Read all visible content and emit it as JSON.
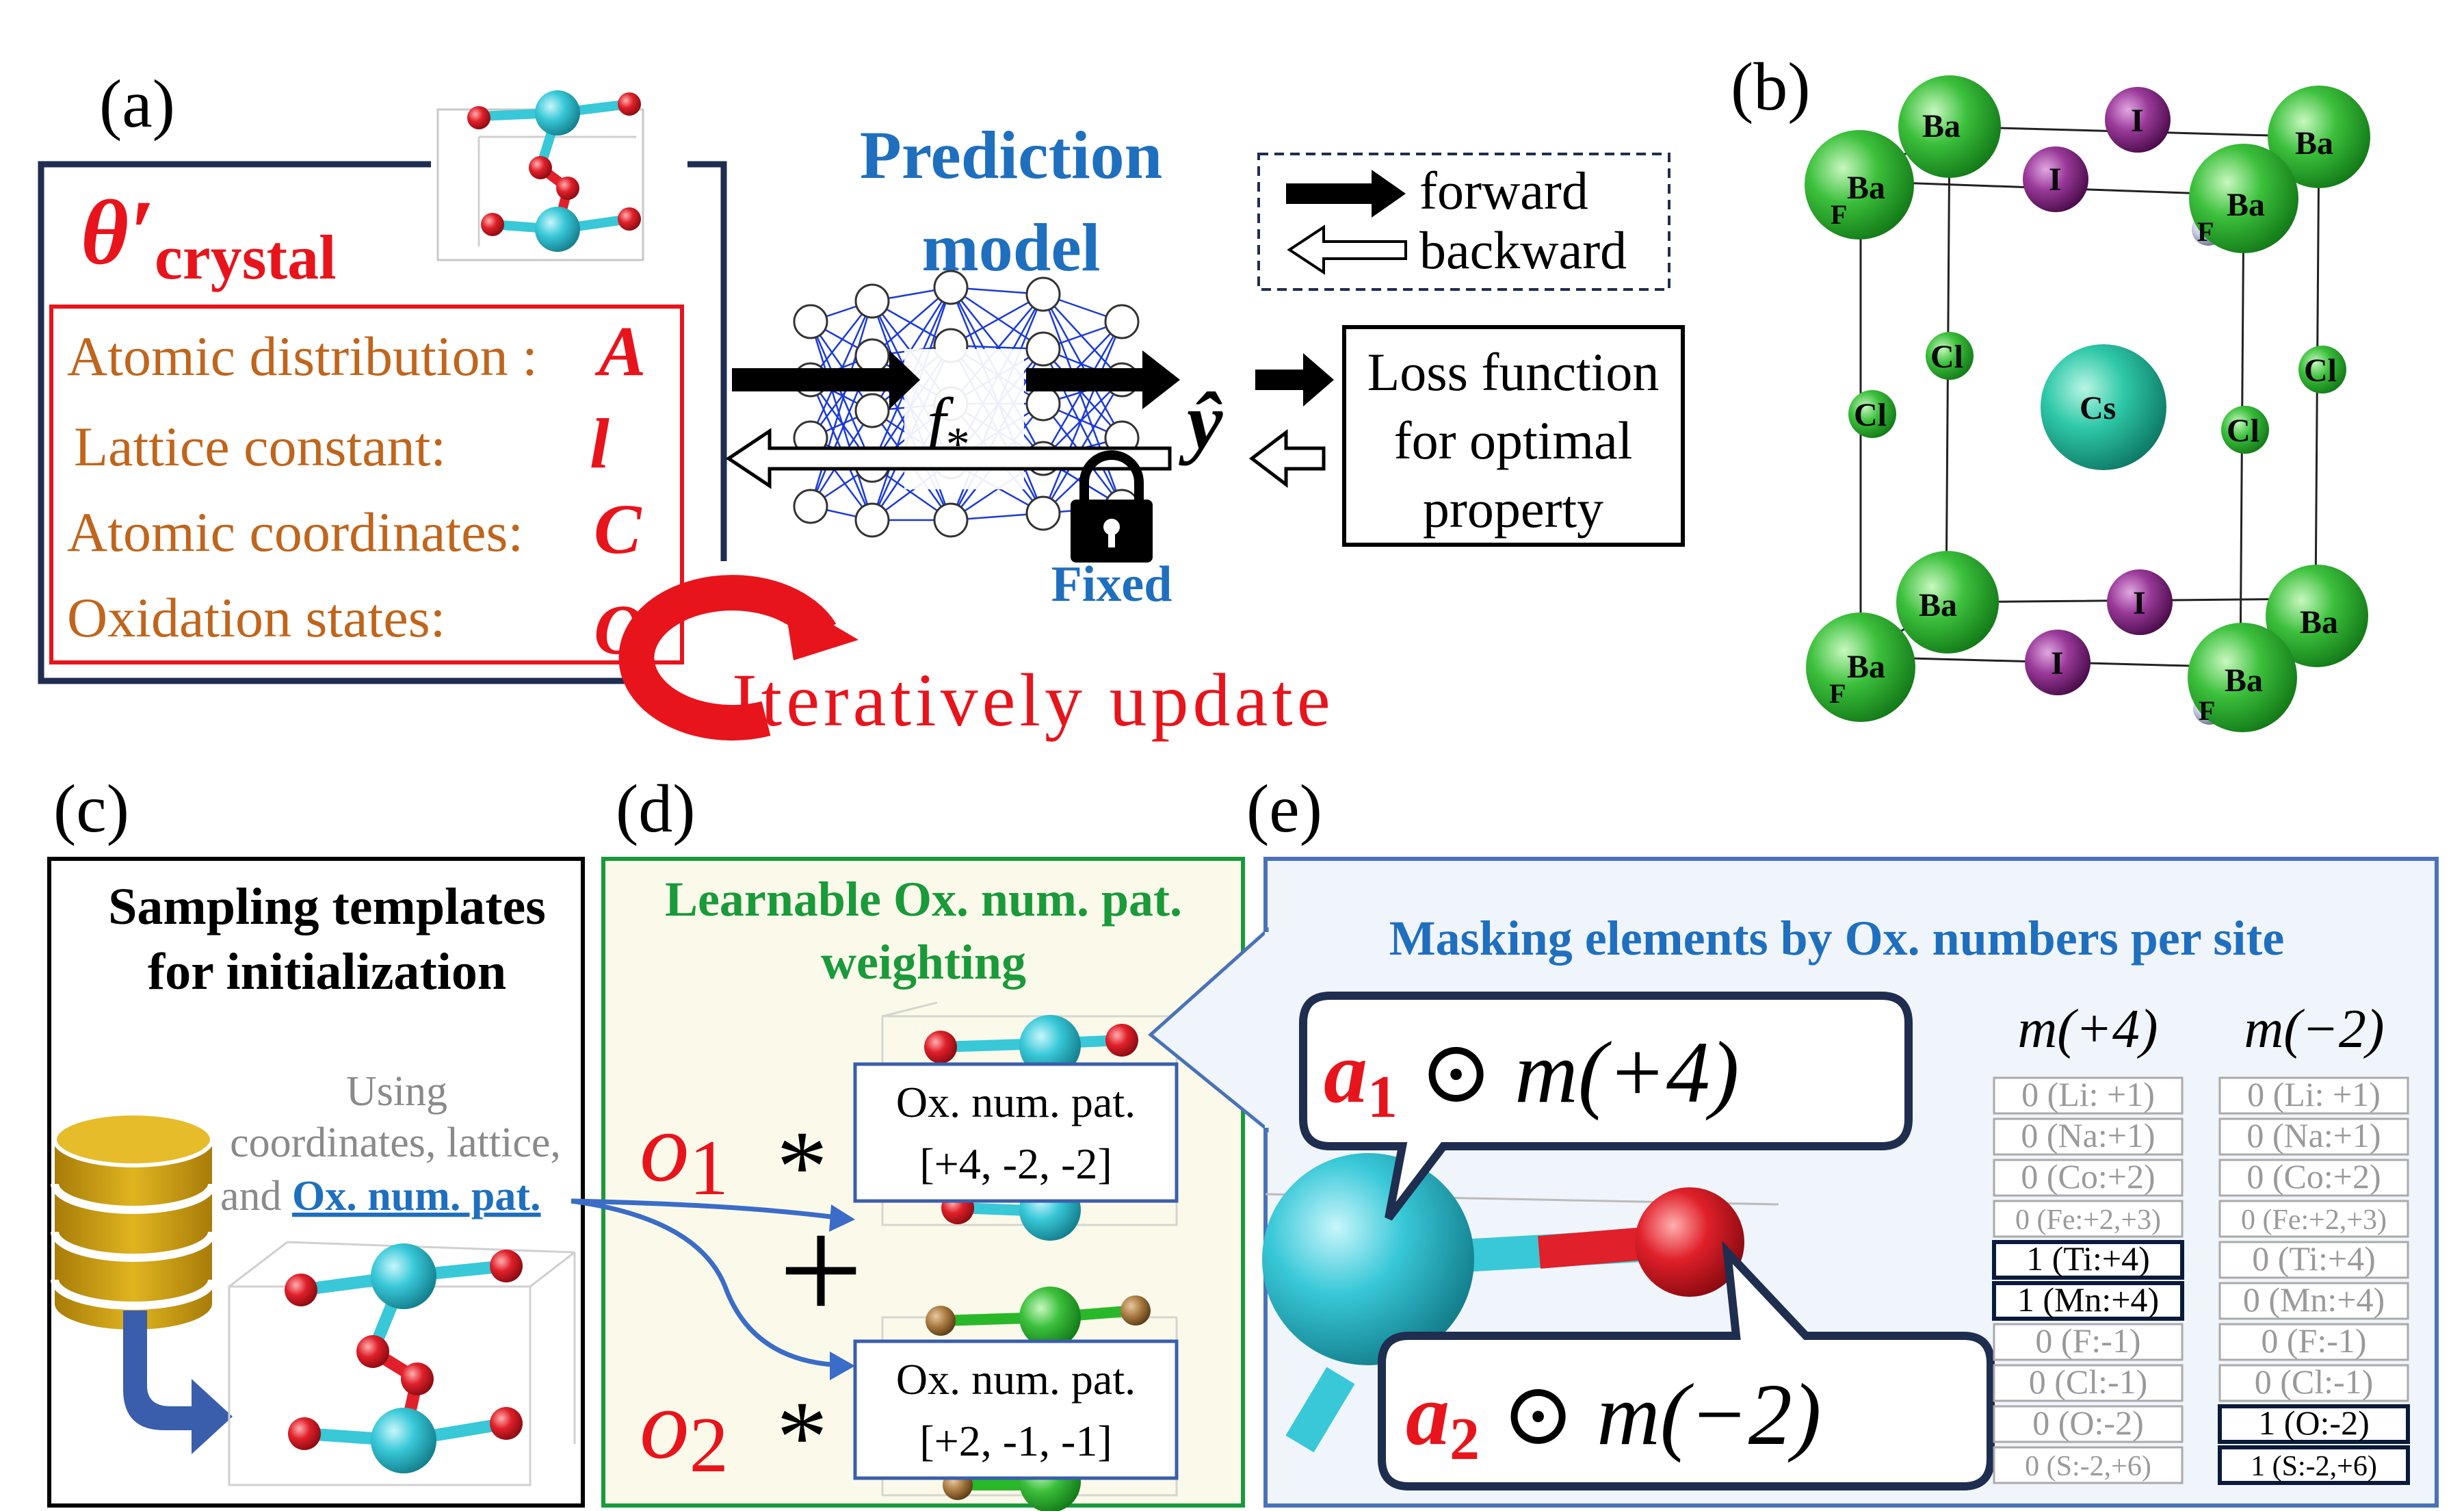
{
  "panel_labels": {
    "a": "(a)",
    "b": "(b)",
    "c": "(c)",
    "d": "(d)",
    "e": "(e)"
  },
  "panel_a": {
    "theta_symbol": "θ′",
    "theta_subscript": "crystal",
    "params": [
      {
        "label": "Atomic distribution :",
        "symbol": "A"
      },
      {
        "label": "Lattice constant:",
        "symbol": "l"
      },
      {
        "label": "Atomic coordinates:",
        "symbol": "C"
      },
      {
        "label": "Oxidation states:",
        "symbol": "O"
      }
    ],
    "prediction_model_line1": "Prediction",
    "prediction_model_line2": "model",
    "model_symbol": "f",
    "model_subscript": "*",
    "fixed_label": "Fixed",
    "y_hat": "ŷ",
    "legend_forward": "forward",
    "legend_backward": "backward",
    "loss_line1": "Loss function",
    "loss_line2": "for optimal",
    "loss_line3": "property",
    "iterate_label": "Iteratively update"
  },
  "panel_b": {
    "atom_ba": "Ba",
    "atom_i": "I",
    "atom_cl": "Cl",
    "atom_cs": "Cs",
    "atom_f": "F"
  },
  "panel_c": {
    "title_line1": "Sampling templates",
    "title_line2": "for initialization",
    "using_line1": "Using",
    "using_line2": "coordinates, lattice,",
    "using_line3_prefix": "and ",
    "using_line3_link": "Ox. num. pat."
  },
  "panel_d": {
    "title_line1": "Learnable Ox. num. pat.",
    "title_line2": "weighting",
    "o1_symbol": "o",
    "o1_sub": "1",
    "o2_symbol": "o",
    "o2_sub": "2",
    "times": "*",
    "plus": "+",
    "pat1_title": "Ox. num. pat.",
    "pat1_values": "[+4, -2, -2]",
    "pat2_title": "Ox. num. pat.",
    "pat2_values": "[+2, -1, -1]"
  },
  "panel_e": {
    "title": "Masking elements by Ox. numbers per site",
    "callout1_a": "a",
    "callout1_sub": "1",
    "callout1_rest": " ⊙ m(+4)",
    "callout2_a": "a",
    "callout2_sub": "2",
    "callout2_rest": " ⊙ m(−2)",
    "mask_plus4_header": "m(+4)",
    "mask_minus2_header": "m(−2)",
    "mask_plus4": [
      {
        "text": "0 (Li: +1)",
        "active": false
      },
      {
        "text": "0 (Na:+1)",
        "active": false
      },
      {
        "text": "0 (Co:+2)",
        "active": false
      },
      {
        "text": "0 (Fe:+2,+3)",
        "active": false
      },
      {
        "text": "1 (Ti:+4)",
        "active": true
      },
      {
        "text": "1 (Mn:+4)",
        "active": true
      },
      {
        "text": "0 (F:-1)",
        "active": false
      },
      {
        "text": "0 (Cl:-1)",
        "active": false
      },
      {
        "text": "0 (O:-2)",
        "active": false
      },
      {
        "text": "0 (S:-2,+6)",
        "active": false
      }
    ],
    "mask_minus2": [
      {
        "text": "0 (Li: +1)",
        "active": false
      },
      {
        "text": "0 (Na:+1)",
        "active": false
      },
      {
        "text": "0 (Co:+2)",
        "active": false
      },
      {
        "text": "0 (Fe:+2,+3)",
        "active": false
      },
      {
        "text": "0 (Ti:+4)",
        "active": false
      },
      {
        "text": "0 (Mn:+4)",
        "active": false
      },
      {
        "text": "0 (F:-1)",
        "active": false
      },
      {
        "text": "0 (Cl:-1)",
        "active": false
      },
      {
        "text": "1 (O:-2)",
        "active": true
      },
      {
        "text": "1 (S:-2,+6)",
        "active": true
      }
    ]
  },
  "colors": {
    "red": "#e8141c",
    "navy": "#1f2d4f",
    "orange_text": "#c0651c",
    "blue_title": "#1f6fbf",
    "green_title": "#1a9a3a",
    "panel_e_border": "#4a72b8",
    "panel_e_bg": "#f0f4fb",
    "panel_d_bg": "#fbfaea",
    "cyan_atom": "#38c8d8",
    "oxygen_atom": "#e0202a",
    "ba_atom": "#3cc03c",
    "iodine_atom": "#8a2a8a",
    "db_gold": "#c89a14"
  }
}
